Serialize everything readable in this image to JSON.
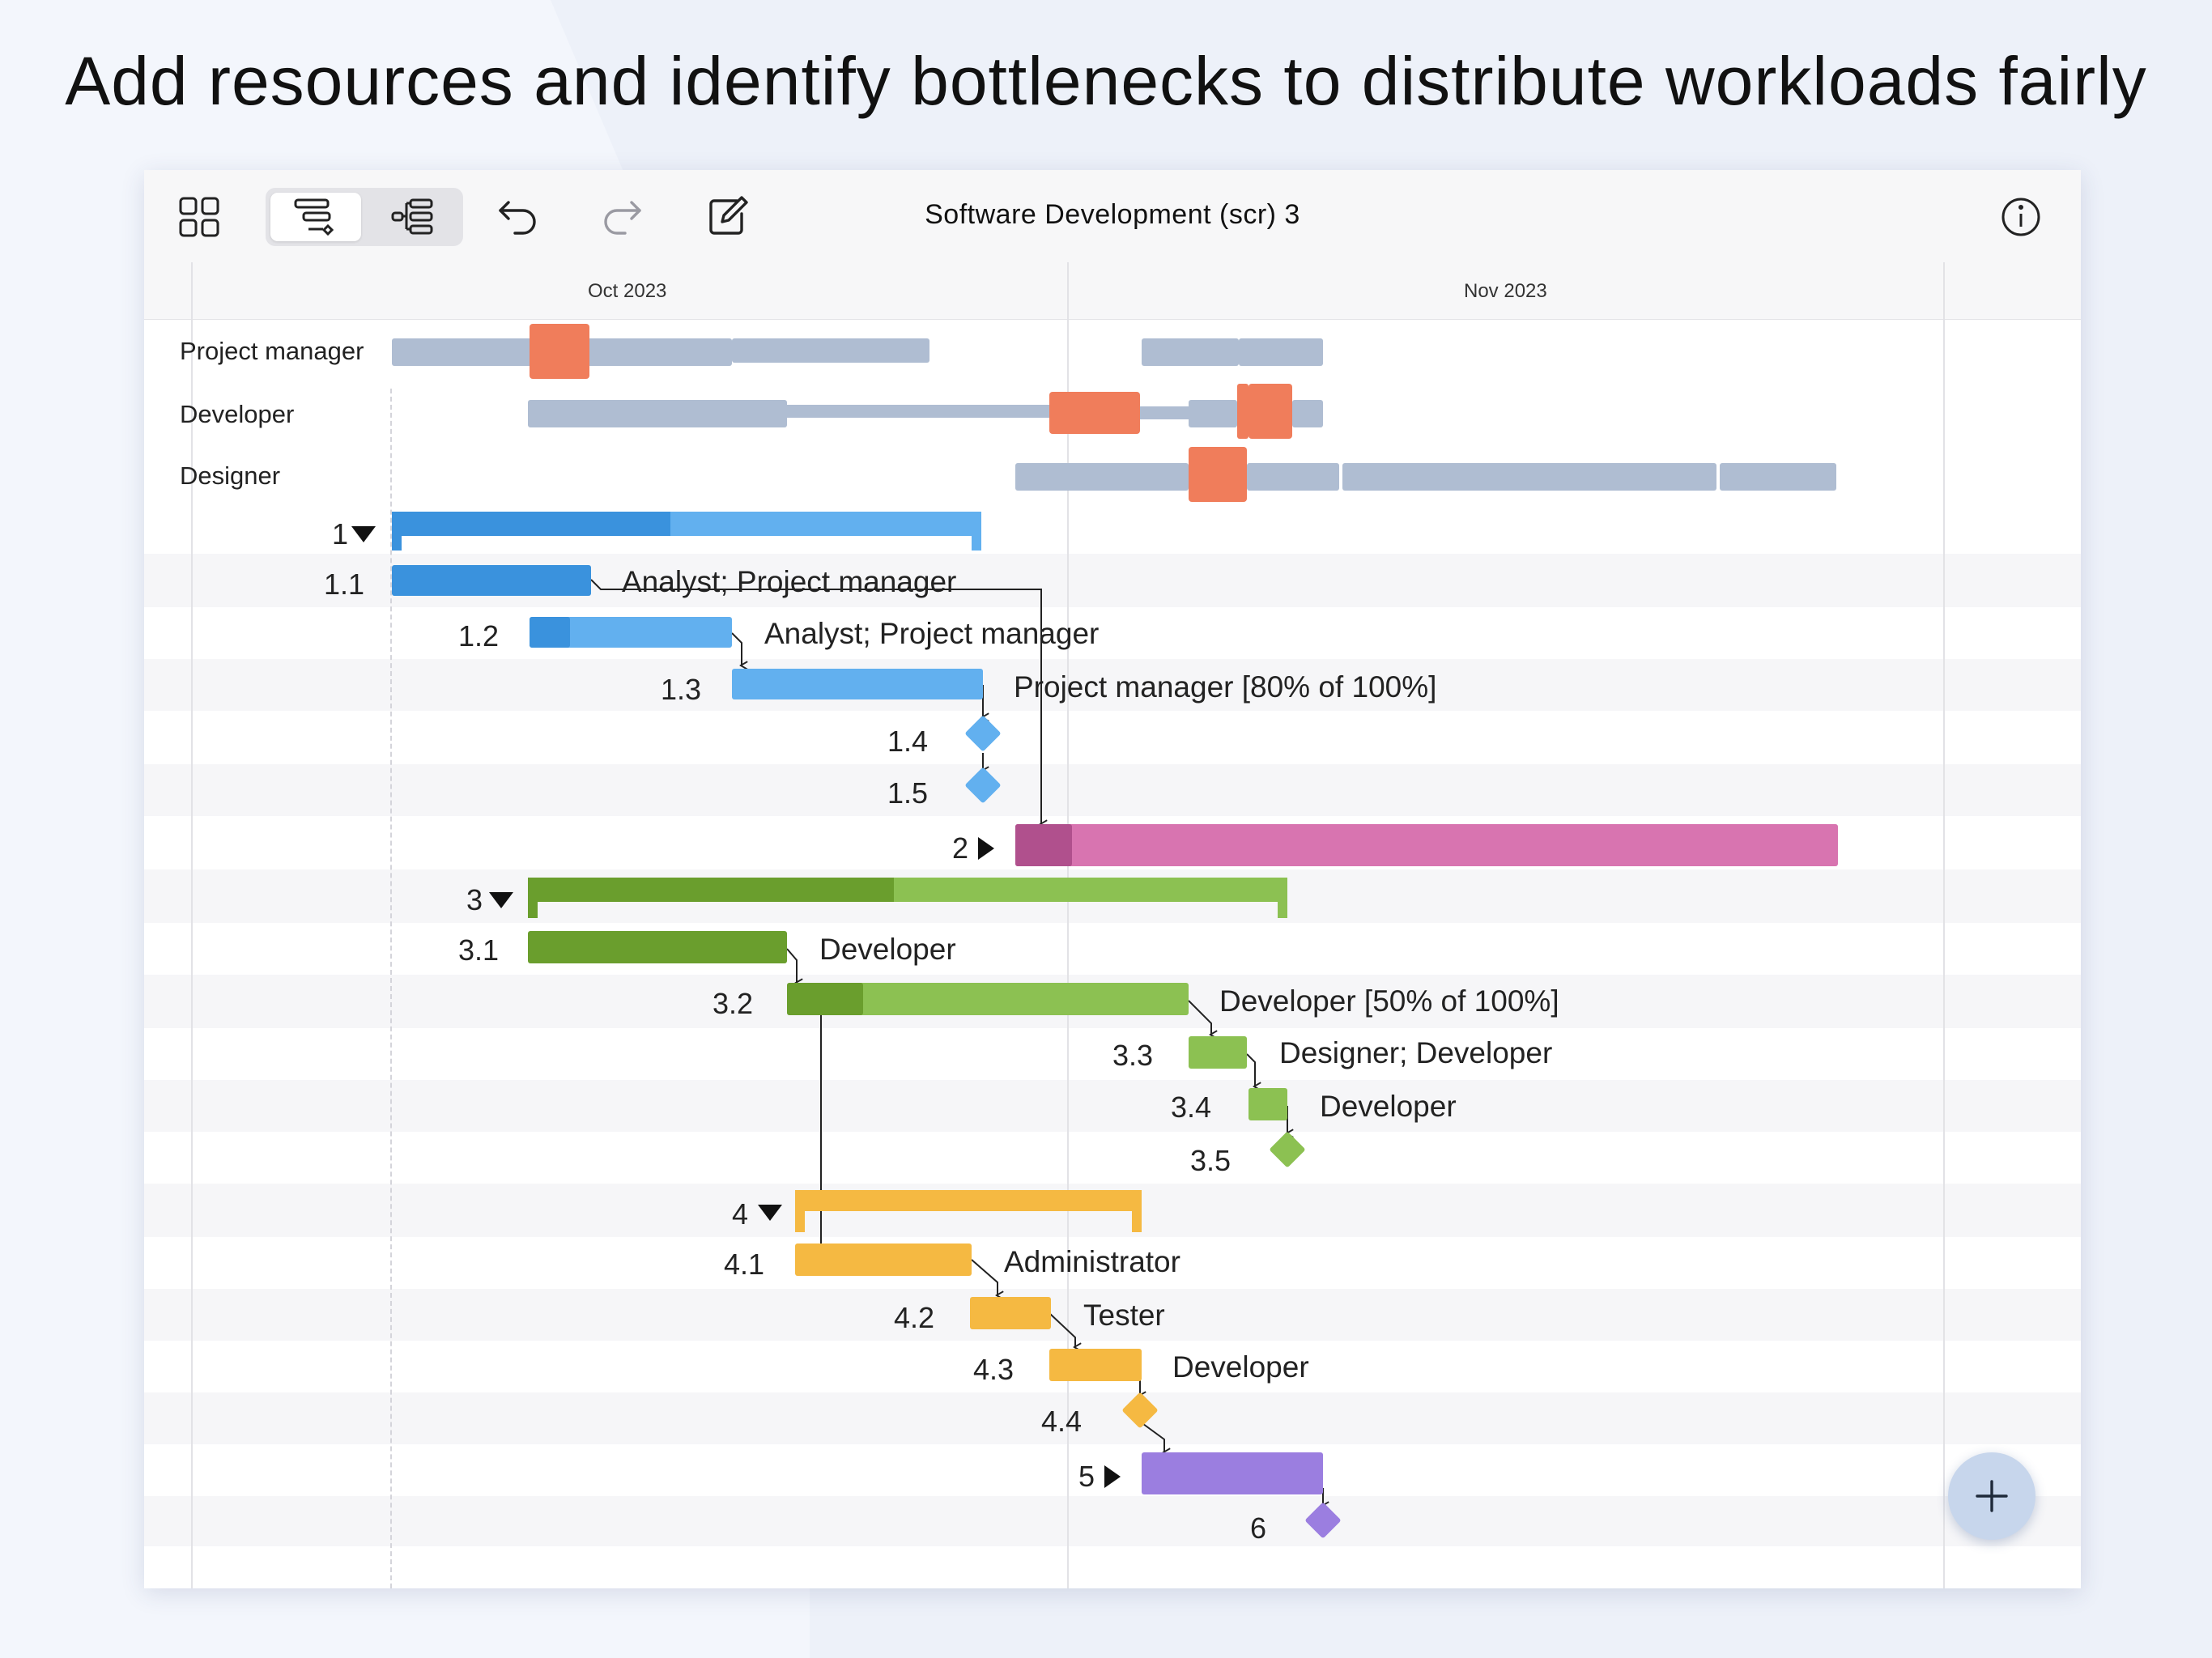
{
  "headline": {
    "bold": "Add resources",
    "rest": " and identify bottlenecks to distribute workloads fairly"
  },
  "window": {
    "title": "Software Development (scr) 3"
  },
  "toolbar": {
    "icons": [
      "grid-icon",
      "gantt-view-icon",
      "outline-view-icon",
      "undo-icon",
      "redo-icon",
      "edit-icon",
      "info-icon"
    ]
  },
  "timescale": {
    "months": [
      "Oct 2023",
      "Nov 2023"
    ]
  },
  "resources": [
    "Project manager",
    "Developer",
    "Designer"
  ],
  "tasks": [
    {
      "id": "1",
      "toggle": "expanded",
      "label": ""
    },
    {
      "id": "1.1",
      "label": "Analyst; Project manager"
    },
    {
      "id": "1.2",
      "label": "Analyst; Project manager"
    },
    {
      "id": "1.3",
      "label": "Project manager [80% of 100%]"
    },
    {
      "id": "1.4",
      "label": ""
    },
    {
      "id": "1.5",
      "label": ""
    },
    {
      "id": "2",
      "toggle": "collapsed",
      "label": ""
    },
    {
      "id": "3",
      "toggle": "expanded",
      "label": ""
    },
    {
      "id": "3.1",
      "label": "Developer"
    },
    {
      "id": "3.2",
      "label": "Developer [50% of 100%]"
    },
    {
      "id": "3.3",
      "label": "Designer; Developer"
    },
    {
      "id": "3.4",
      "label": "Developer"
    },
    {
      "id": "3.5",
      "label": ""
    },
    {
      "id": "4",
      "toggle": "expanded",
      "label": ""
    },
    {
      "id": "4.1",
      "label": "Administrator"
    },
    {
      "id": "4.2",
      "label": "Tester"
    },
    {
      "id": "4.3",
      "label": "Developer"
    },
    {
      "id": "4.4",
      "label": ""
    },
    {
      "id": "5",
      "toggle": "collapsed",
      "label": ""
    },
    {
      "id": "6",
      "label": ""
    }
  ],
  "colors": {
    "group1": "#3a92dd",
    "group1_light": "#62b0ef",
    "group2": "#b0508d",
    "group2_light": "#d874b0",
    "group3": "#6a9e2d",
    "group3_light": "#8cc152",
    "group4": "#f5b942",
    "group5": "#9b7ee0",
    "resource_load": "#afbdd2",
    "overload": "#f07d5b"
  },
  "fab": {
    "icon": "plus-icon"
  }
}
